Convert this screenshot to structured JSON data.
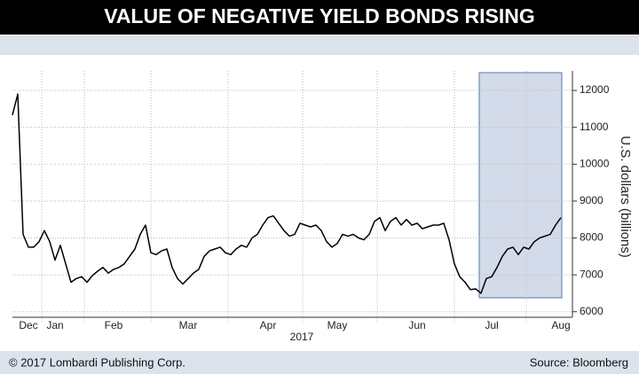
{
  "chart_data": {
    "type": "line",
    "title": "VALUE OF NEGATIVE YIELD BONDS RISING",
    "ylabel": "U.S. dollars (billions)",
    "xlabel": "2017",
    "credit": "© 2017 Lombardi Publishing Corp.",
    "source": "Source: Bloomberg",
    "categories": [
      null,
      null,
      null,
      "Dec",
      null,
      null,
      null,
      null,
      "Jan",
      null,
      null,
      null,
      null,
      null,
      null,
      null,
      null,
      null,
      null,
      "Feb",
      null,
      null,
      null,
      null,
      null,
      null,
      null,
      null,
      null,
      null,
      null,
      null,
      null,
      "Mar",
      null,
      null,
      null,
      null,
      null,
      null,
      null,
      null,
      null,
      null,
      null,
      null,
      null,
      null,
      "Apr",
      null,
      null,
      null,
      null,
      null,
      null,
      null,
      null,
      null,
      null,
      null,
      null,
      "May",
      null,
      null,
      null,
      null,
      null,
      null,
      null,
      null,
      null,
      null,
      null,
      null,
      null,
      null,
      "Jun",
      null,
      null,
      null,
      null,
      null,
      null,
      null,
      null,
      null,
      null,
      null,
      null,
      null,
      "Jul",
      null,
      null,
      null,
      null,
      null,
      null,
      null,
      null,
      null,
      null,
      null,
      null,
      "Aug"
    ],
    "series": [
      {
        "name": "Value of negative yield bonds",
        "color": "#000000",
        "values": [
          11330,
          11900,
          8100,
          7750,
          7750,
          7900,
          8200,
          7900,
          7400,
          7800,
          7300,
          6800,
          6900,
          6950,
          6800,
          6980,
          7100,
          7200,
          7050,
          7150,
          7200,
          7300,
          7500,
          7700,
          8100,
          8350,
          7600,
          7550,
          7650,
          7700,
          7200,
          6900,
          6750,
          6900,
          7050,
          7150,
          7500,
          7650,
          7700,
          7750,
          7600,
          7550,
          7700,
          7800,
          7750,
          8000,
          8100,
          8350,
          8550,
          8600,
          8400,
          8200,
          8050,
          8100,
          8400,
          8350,
          8300,
          8350,
          8200,
          7900,
          7750,
          7850,
          8100,
          8050,
          8100,
          8000,
          7950,
          8100,
          8450,
          8550,
          8200,
          8450,
          8550,
          8350,
          8500,
          8350,
          8400,
          8250,
          8300,
          8350,
          8350,
          8400,
          7950,
          7300,
          6950,
          6800,
          6600,
          6620,
          6500,
          6900,
          6950,
          7200,
          7500,
          7700,
          7750,
          7550,
          7750,
          7700,
          7900,
          8000,
          8050,
          8100,
          8350,
          8550
        ]
      }
    ],
    "ylim": [
      5850,
      12530
    ],
    "yticks": [
      6000,
      7000,
      8000,
      9000,
      10000,
      11000,
      12000
    ],
    "grid": true
  }
}
